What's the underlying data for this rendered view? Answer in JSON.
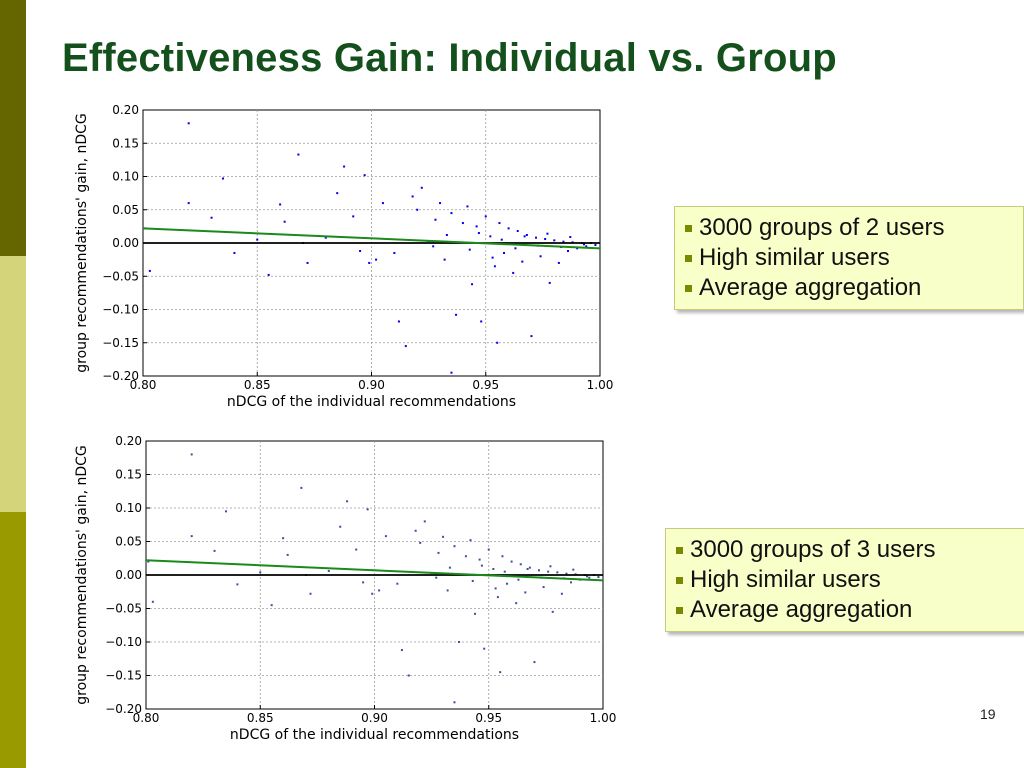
{
  "slide": {
    "title": "Effectiveness Gain: Individual vs. Group",
    "page_number": "19",
    "accent_colors": {
      "title": "#14501c",
      "band_dark": "#666600",
      "band_light": "#d4d47a",
      "band_mid": "#999900",
      "bullet": "#7a8a00",
      "callout_bg": "#f8ffc9"
    }
  },
  "callouts": [
    {
      "items": [
        "3000 groups of 2 users",
        "High similar users",
        "Average aggregation"
      ]
    },
    {
      "items": [
        "3000 groups of 3 users",
        "High similar users",
        "Average aggregation"
      ]
    }
  ],
  "chart_data": [
    {
      "type": "scatter",
      "title": "",
      "xlabel": "nDCG of the individual recommendations",
      "ylabel": "group recommendations' gain, nDCG",
      "xlim": [
        0.8,
        1.0
      ],
      "ylim": [
        -0.2,
        0.2
      ],
      "xticks": [
        "0.80",
        "0.85",
        "0.90",
        "0.95",
        "1.00"
      ],
      "yticks": [
        "0.20",
        "0.15",
        "0.10",
        "0.05",
        "0.00",
        "−0.05",
        "−0.10",
        "−0.15",
        "−0.20"
      ],
      "grid": true,
      "point_color": "#0000ee",
      "trend_line": {
        "x": [
          0.8,
          1.0
        ],
        "y": [
          0.022,
          -0.008
        ],
        "color": "#1a8a1a"
      },
      "zero_line": {
        "y": 0.0,
        "color": "#000000"
      },
      "points": [
        [
          0.82,
          0.18
        ],
        [
          0.868,
          0.133
        ],
        [
          0.888,
          0.115
        ],
        [
          0.801,
          0.022
        ],
        [
          0.803,
          -0.042
        ],
        [
          0.82,
          0.06
        ],
        [
          0.835,
          0.097
        ],
        [
          0.83,
          0.038
        ],
        [
          0.85,
          0.005
        ],
        [
          0.86,
          0.058
        ],
        [
          0.862,
          0.032
        ],
        [
          0.872,
          -0.03
        ],
        [
          0.88,
          0.008
        ],
        [
          0.885,
          0.075
        ],
        [
          0.892,
          0.04
        ],
        [
          0.897,
          0.102
        ],
        [
          0.899,
          -0.03
        ],
        [
          0.905,
          0.06
        ],
        [
          0.91,
          -0.015
        ],
        [
          0.912,
          -0.118
        ],
        [
          0.92,
          0.05
        ],
        [
          0.922,
          0.083
        ],
        [
          0.928,
          0.035
        ],
        [
          0.93,
          0.06
        ],
        [
          0.932,
          -0.025
        ],
        [
          0.935,
          0.045
        ],
        [
          0.937,
          -0.108
        ],
        [
          0.94,
          0.03
        ],
        [
          0.942,
          0.055
        ],
        [
          0.944,
          -0.062
        ],
        [
          0.946,
          0.025
        ],
        [
          0.948,
          -0.118
        ],
        [
          0.95,
          0.04
        ],
        [
          0.952,
          0.01
        ],
        [
          0.954,
          -0.035
        ],
        [
          0.956,
          0.03
        ],
        [
          0.958,
          -0.015
        ],
        [
          0.96,
          0.022
        ],
        [
          0.962,
          -0.045
        ],
        [
          0.964,
          0.018
        ],
        [
          0.966,
          -0.028
        ],
        [
          0.968,
          0.012
        ],
        [
          0.97,
          -0.14
        ],
        [
          0.972,
          0.008
        ],
        [
          0.974,
          -0.02
        ],
        [
          0.976,
          0.006
        ],
        [
          0.978,
          -0.06
        ],
        [
          0.98,
          0.004
        ],
        [
          0.982,
          -0.03
        ],
        [
          0.984,
          0.002
        ],
        [
          0.986,
          -0.012
        ],
        [
          0.988,
          0.001
        ],
        [
          0.99,
          -0.008
        ],
        [
          0.992,
          0.0
        ],
        [
          0.994,
          -0.005
        ],
        [
          0.996,
          0.0
        ],
        [
          0.998,
          -0.003
        ],
        [
          0.935,
          -0.195
        ],
        [
          0.915,
          -0.155
        ],
        [
          0.955,
          -0.15
        ],
        [
          0.925,
          0.003
        ],
        [
          0.927,
          -0.005
        ],
        [
          0.933,
          0.012
        ],
        [
          0.943,
          -0.01
        ],
        [
          0.947,
          0.015
        ],
        [
          0.953,
          -0.022
        ],
        [
          0.957,
          0.005
        ],
        [
          0.963,
          -0.008
        ],
        [
          0.967,
          0.01
        ],
        [
          0.973,
          -0.004
        ],
        [
          0.977,
          0.014
        ],
        [
          0.983,
          -0.006
        ],
        [
          0.987,
          0.009
        ],
        [
          0.993,
          -0.002
        ],
        [
          0.84,
          -0.015
        ],
        [
          0.855,
          -0.048
        ],
        [
          0.87,
          0.0
        ],
        [
          0.895,
          -0.012
        ],
        [
          0.902,
          -0.025
        ],
        [
          0.918,
          0.07
        ]
      ]
    },
    {
      "type": "scatter",
      "title": "",
      "xlabel": "nDCG of the individual recommendations",
      "ylabel": "group recommendations' gain, nDCG",
      "xlim": [
        0.8,
        1.0
      ],
      "ylim": [
        -0.2,
        0.2
      ],
      "xticks": [
        "0.80",
        "0.85",
        "0.90",
        "0.95",
        "1.00"
      ],
      "yticks": [
        "0.20",
        "0.15",
        "0.10",
        "0.05",
        "0.00",
        "−0.05",
        "−0.10",
        "−0.15",
        "−0.20"
      ],
      "grid": true,
      "point_color": "#3c4f9a",
      "trend_line": {
        "x": [
          0.8,
          1.0
        ],
        "y": [
          0.022,
          -0.008
        ],
        "color": "#1a8a1a"
      },
      "zero_line": {
        "y": 0.0,
        "color": "#000000"
      },
      "points": [
        [
          0.82,
          0.18
        ],
        [
          0.868,
          0.13
        ],
        [
          0.888,
          0.11
        ],
        [
          0.801,
          0.02
        ],
        [
          0.803,
          -0.04
        ],
        [
          0.82,
          0.058
        ],
        [
          0.835,
          0.095
        ],
        [
          0.83,
          0.036
        ],
        [
          0.85,
          0.004
        ],
        [
          0.86,
          0.055
        ],
        [
          0.862,
          0.03
        ],
        [
          0.872,
          -0.028
        ],
        [
          0.88,
          0.006
        ],
        [
          0.885,
          0.072
        ],
        [
          0.892,
          0.038
        ],
        [
          0.897,
          0.098
        ],
        [
          0.899,
          -0.028
        ],
        [
          0.905,
          0.058
        ],
        [
          0.91,
          -0.013
        ],
        [
          0.912,
          -0.112
        ],
        [
          0.92,
          0.048
        ],
        [
          0.922,
          0.08
        ],
        [
          0.928,
          0.033
        ],
        [
          0.93,
          0.057
        ],
        [
          0.932,
          -0.023
        ],
        [
          0.935,
          0.043
        ],
        [
          0.937,
          -0.1
        ],
        [
          0.94,
          0.028
        ],
        [
          0.942,
          0.052
        ],
        [
          0.944,
          -0.058
        ],
        [
          0.946,
          0.023
        ],
        [
          0.948,
          -0.11
        ],
        [
          0.95,
          0.038
        ],
        [
          0.952,
          0.009
        ],
        [
          0.954,
          -0.033
        ],
        [
          0.956,
          0.028
        ],
        [
          0.958,
          -0.013
        ],
        [
          0.96,
          0.02
        ],
        [
          0.962,
          -0.042
        ],
        [
          0.964,
          0.016
        ],
        [
          0.966,
          -0.026
        ],
        [
          0.968,
          0.011
        ],
        [
          0.97,
          -0.13
        ],
        [
          0.972,
          0.007
        ],
        [
          0.974,
          -0.018
        ],
        [
          0.976,
          0.005
        ],
        [
          0.978,
          -0.055
        ],
        [
          0.98,
          0.004
        ],
        [
          0.982,
          -0.028
        ],
        [
          0.984,
          0.002
        ],
        [
          0.986,
          -0.011
        ],
        [
          0.988,
          0.001
        ],
        [
          0.99,
          -0.007
        ],
        [
          0.992,
          0.0
        ],
        [
          0.994,
          -0.004
        ],
        [
          0.996,
          0.0
        ],
        [
          0.998,
          -0.003
        ],
        [
          0.935,
          -0.19
        ],
        [
          0.915,
          -0.15
        ],
        [
          0.955,
          -0.145
        ],
        [
          0.925,
          0.003
        ],
        [
          0.927,
          -0.004
        ],
        [
          0.933,
          0.011
        ],
        [
          0.943,
          -0.009
        ],
        [
          0.947,
          0.014
        ],
        [
          0.953,
          -0.02
        ],
        [
          0.957,
          0.005
        ],
        [
          0.963,
          -0.007
        ],
        [
          0.967,
          0.009
        ],
        [
          0.973,
          -0.004
        ],
        [
          0.977,
          0.013
        ],
        [
          0.983,
          -0.005
        ],
        [
          0.987,
          0.008
        ],
        [
          0.993,
          -0.002
        ],
        [
          0.84,
          -0.014
        ],
        [
          0.855,
          -0.045
        ],
        [
          0.87,
          0.0
        ],
        [
          0.895,
          -0.011
        ],
        [
          0.902,
          -0.023
        ],
        [
          0.918,
          0.066
        ]
      ]
    }
  ]
}
